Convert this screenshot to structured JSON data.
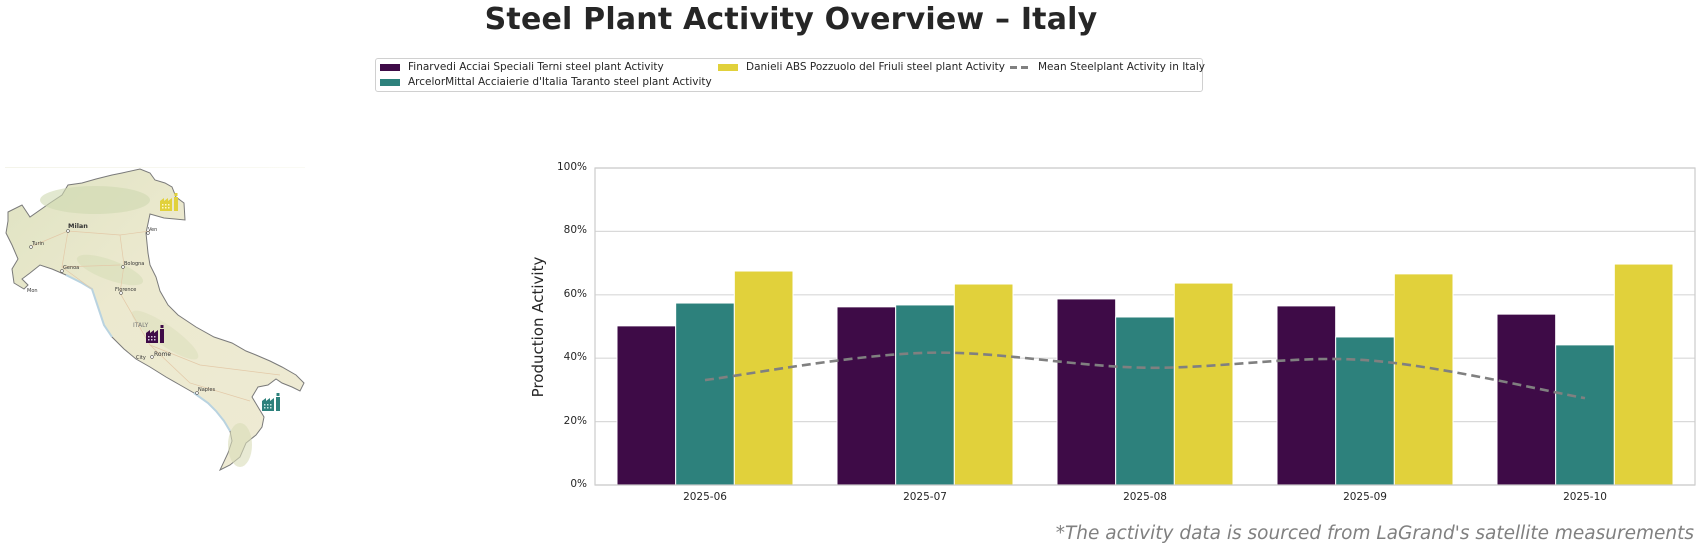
{
  "title": "Steel Plant Activity Overview – Italy",
  "footnote": "*The activity data is sourced from LaGrand's satellite measurements",
  "legend": {
    "items": [
      {
        "label": "Finarvedi Acciai Speciali Terni steel plant Activity",
        "type": "bar",
        "color": "#3e0b47"
      },
      {
        "label": "ArcelorMittal Acciaierie d'Italia Taranto steel plant Activity",
        "type": "bar",
        "color": "#2d817c"
      },
      {
        "label": "Danieli ABS Pozzuolo del Friuli steel plant Activity",
        "type": "bar",
        "color": "#e1d13b"
      },
      {
        "label": "Mean Steelplant Activity in Italy",
        "type": "dashed-line",
        "color": "#808080"
      }
    ]
  },
  "map": {
    "labels": [
      "Milan",
      "Turin",
      "Genoa",
      "Bologna",
      "Florence",
      "ITALY",
      "Rome",
      "City",
      "Naples",
      "Ven",
      "Mon"
    ],
    "markers": [
      {
        "plant": "Danieli ABS Pozzuolo del Friuli",
        "icon": "factory-icon",
        "color": "#e1d13b"
      },
      {
        "plant": "Finarvedi Acciai Speciali Terni",
        "icon": "factory-icon",
        "color": "#3e0b47"
      },
      {
        "plant": "ArcelorMittal Acciaierie d'Italia Taranto",
        "icon": "factory-icon",
        "color": "#2d817c"
      }
    ]
  },
  "chart_data": {
    "type": "bar",
    "title": "Steel Plant Activity Overview – Italy",
    "xlabel": "",
    "ylabel": "Production Activity",
    "ylim": [
      0,
      100
    ],
    "yticks": [
      "0%",
      "20%",
      "40%",
      "60%",
      "80%",
      "100%"
    ],
    "ytick_values": [
      0,
      20,
      40,
      60,
      80,
      100
    ],
    "grid": true,
    "legend_position": "top-center",
    "categories": [
      "2025-06",
      "2025-07",
      "2025-08",
      "2025-09",
      "2025-10"
    ],
    "series": [
      {
        "name": "Finarvedi Acciai Speciali Terni steel plant Activity",
        "type": "bar",
        "color": "#3e0b47",
        "values": [
          50.2,
          56.2,
          58.7,
          56.5,
          53.9
        ]
      },
      {
        "name": "ArcelorMittal Acciaierie d'Italia Taranto steel plant Activity",
        "type": "bar",
        "color": "#2d817c",
        "values": [
          57.4,
          56.8,
          53.0,
          46.7,
          44.2
        ]
      },
      {
        "name": "Danieli ABS Pozzuolo del Friuli steel plant Activity",
        "type": "bar",
        "color": "#e1d13b",
        "values": [
          67.5,
          63.4,
          63.7,
          66.6,
          69.7
        ]
      },
      {
        "name": "Mean Steelplant Activity in Italy",
        "type": "line",
        "style": "dashed",
        "color": "#808080",
        "values": [
          33.1,
          41.7,
          37.0,
          39.4,
          27.4
        ]
      }
    ]
  }
}
